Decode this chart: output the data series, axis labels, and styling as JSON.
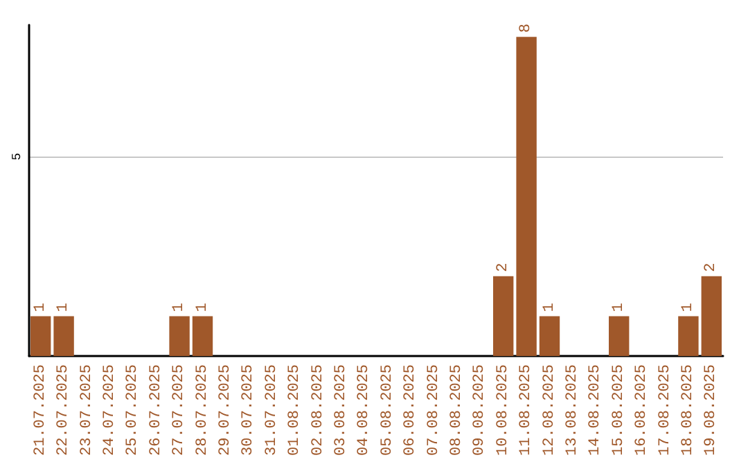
{
  "chart_data": {
    "type": "bar",
    "categories": [
      "21.07.2025",
      "22.07.2025",
      "23.07.2025",
      "24.07.2025",
      "25.07.2025",
      "26.07.2025",
      "27.07.2025",
      "28.07.2025",
      "29.07.2025",
      "30.07.2025",
      "31.07.2025",
      "01.08.2025",
      "02.08.2025",
      "03.08.2025",
      "04.08.2025",
      "05.08.2025",
      "06.08.2025",
      "07.08.2025",
      "08.08.2025",
      "09.08.2025",
      "10.08.2025",
      "11.08.2025",
      "12.08.2025",
      "13.08.2025",
      "14.08.2025",
      "15.08.2025",
      "16.08.2025",
      "17.08.2025",
      "18.08.2025",
      "19.08.2025"
    ],
    "values": [
      1,
      1,
      0,
      0,
      0,
      0,
      1,
      1,
      0,
      0,
      0,
      0,
      0,
      0,
      0,
      0,
      0,
      0,
      0,
      0,
      2,
      8,
      1,
      0,
      0,
      1,
      0,
      0,
      1,
      2
    ],
    "value_labels": [
      "1",
      "1",
      null,
      null,
      null,
      null,
      "1",
      "1",
      null,
      null,
      null,
      null,
      null,
      null,
      null,
      null,
      null,
      null,
      null,
      null,
      "2",
      "8",
      "1",
      null,
      null,
      "1",
      null,
      null,
      "1",
      "2"
    ],
    "color": "#a0582a",
    "ylim": [
      0,
      8.3
    ],
    "yticks": [
      5
    ],
    "grid": "y"
  }
}
